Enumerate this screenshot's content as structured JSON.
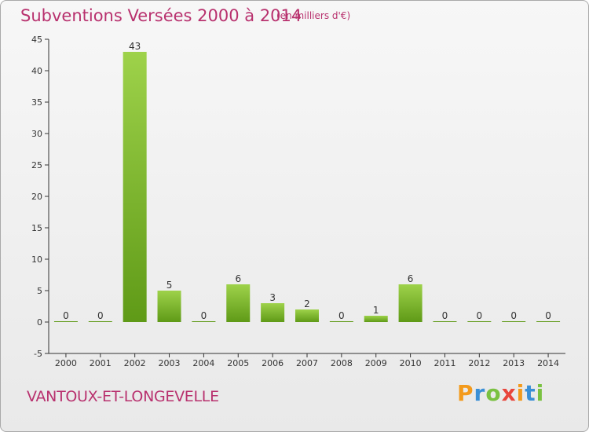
{
  "header": {
    "title": "Subventions Versées 2000 à 2014",
    "subtitle": "(en milliers d'€)"
  },
  "footer": {
    "commune": "VANTOUX-ET-LONGEVELLE",
    "logo": "Proxiti"
  },
  "colors": {
    "title": "#b8316e",
    "bar_light": "#9ed24a",
    "bar_dark": "#5f9a17",
    "grid": "#dddddd",
    "axis": "#333333"
  },
  "chart_data": {
    "type": "bar",
    "title": "Subventions Versées 2000 à 2014",
    "xlabel": "",
    "ylabel": "",
    "categories": [
      "2000",
      "2001",
      "2002",
      "2003",
      "2004",
      "2005",
      "2006",
      "2007",
      "2008",
      "2009",
      "2010",
      "2011",
      "2012",
      "2013",
      "2014"
    ],
    "values": [
      0,
      0,
      43,
      5,
      0,
      6,
      3,
      2,
      0,
      1,
      6,
      0,
      0,
      0,
      0
    ],
    "ylim": [
      -5,
      45
    ],
    "yticks": [
      -5,
      0,
      5,
      10,
      15,
      20,
      25,
      30,
      35,
      40,
      45
    ],
    "grid": false,
    "data_labels": true
  }
}
